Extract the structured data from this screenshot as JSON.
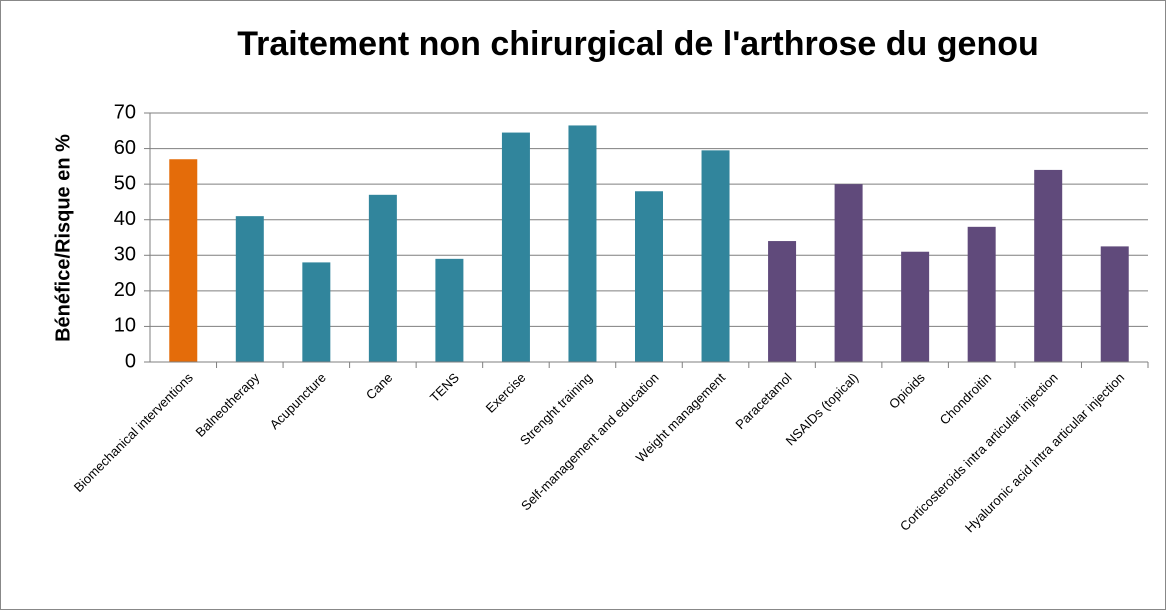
{
  "chart_data": {
    "type": "bar",
    "title": "Traitement non chirurgical de l'arthrose du genou",
    "y_label": "Bénéfice/Risque en %",
    "categories": [
      "Biomechanical interventions",
      "Balneotherapy",
      "Acupuncture",
      "Cane",
      "TENS",
      "Exercise",
      "Strenght training",
      "Self-management and education",
      "Weight management",
      "Paracetamol",
      "NSAIDs (topical)",
      "Opioids",
      "Chondroitin",
      "Corticosteroids intra articular injection",
      "Hyaluronic acid intra articular injection"
    ],
    "values": [
      57,
      41,
      28,
      47,
      29,
      64.5,
      66.5,
      48,
      59.5,
      34,
      50,
      31,
      38,
      54,
      32.5
    ],
    "colors": [
      "#e46c0a",
      "#31859c",
      "#31859c",
      "#31859c",
      "#31859c",
      "#31859c",
      "#31859c",
      "#31859c",
      "#31859c",
      "#604a7b",
      "#604a7b",
      "#604a7b",
      "#604a7b",
      "#604a7b",
      "#604a7b"
    ],
    "ylim": [
      0,
      70
    ],
    "yticks": [
      0,
      10,
      20,
      30,
      40,
      50,
      60,
      70
    ],
    "grid": true
  }
}
